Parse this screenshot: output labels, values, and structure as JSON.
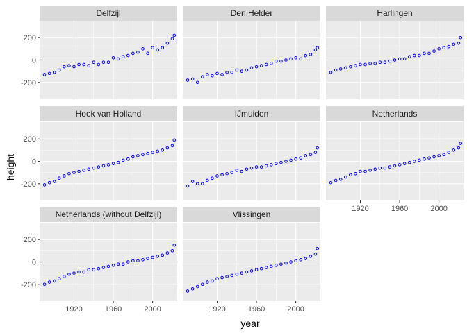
{
  "chart_data": {
    "type": "scatter",
    "facet_layout": {
      "ncol": 3,
      "nrow": 3
    },
    "xlabel": "year",
    "ylabel": "height",
    "xlim": [
      1885,
      2025
    ],
    "ylim": [
      -350,
      350
    ],
    "x_ticks": [
      1920,
      1960,
      2000
    ],
    "y_ticks": [
      -200,
      0,
      200
    ],
    "grid": true,
    "point_color": "#0000ff",
    "background_color": "#ebebeb",
    "strip_color": "#d9d9d9",
    "panels": [
      {
        "name": "Delfzijl",
        "x": [
          1890,
          1895,
          1900,
          1905,
          1910,
          1915,
          1920,
          1925,
          1930,
          1935,
          1940,
          1945,
          1950,
          1955,
          1960,
          1965,
          1970,
          1975,
          1980,
          1985,
          1990,
          1995,
          2000,
          2005,
          2010,
          2015,
          2020,
          2022
        ],
        "y": [
          -130,
          -120,
          -110,
          -90,
          -60,
          -50,
          -60,
          -40,
          -40,
          -50,
          -20,
          -40,
          -20,
          -20,
          20,
          10,
          30,
          40,
          60,
          70,
          100,
          60,
          110,
          90,
          110,
          150,
          190,
          220
        ]
      },
      {
        "name": "Den Helder",
        "x": [
          1890,
          1895,
          1900,
          1905,
          1910,
          1915,
          1920,
          1925,
          1930,
          1935,
          1940,
          1945,
          1950,
          1955,
          1960,
          1965,
          1970,
          1975,
          1980,
          1985,
          1990,
          1995,
          2000,
          2005,
          2010,
          2015,
          2020,
          2022
        ],
        "y": [
          -180,
          -170,
          -200,
          -150,
          -130,
          -140,
          -120,
          -130,
          -110,
          -110,
          -90,
          -100,
          -90,
          -70,
          -60,
          -50,
          -40,
          -30,
          -10,
          -10,
          0,
          10,
          20,
          10,
          40,
          50,
          90,
          110
        ]
      },
      {
        "name": "Harlingen",
        "x": [
          1890,
          1895,
          1900,
          1905,
          1910,
          1915,
          1920,
          1925,
          1930,
          1935,
          1940,
          1945,
          1950,
          1955,
          1960,
          1965,
          1970,
          1975,
          1980,
          1985,
          1990,
          1995,
          2000,
          2005,
          2010,
          2015,
          2020,
          2022
        ],
        "y": [
          -110,
          -90,
          -80,
          -70,
          -60,
          -50,
          -40,
          -40,
          -30,
          -30,
          -20,
          -20,
          -10,
          0,
          10,
          10,
          30,
          40,
          40,
          60,
          60,
          80,
          100,
          110,
          120,
          140,
          150,
          200
        ]
      },
      {
        "name": "Hoek van Holland",
        "x": [
          1890,
          1895,
          1900,
          1905,
          1910,
          1915,
          1920,
          1925,
          1930,
          1935,
          1940,
          1945,
          1950,
          1955,
          1960,
          1965,
          1970,
          1975,
          1980,
          1985,
          1990,
          1995,
          2000,
          2005,
          2010,
          2015,
          2020,
          2022
        ],
        "y": [
          -210,
          -190,
          -180,
          -150,
          -130,
          -110,
          -100,
          -90,
          -80,
          -70,
          -60,
          -50,
          -40,
          -30,
          -20,
          -10,
          10,
          20,
          40,
          50,
          60,
          70,
          80,
          90,
          100,
          120,
          140,
          190
        ]
      },
      {
        "name": "IJmuiden",
        "x": [
          1890,
          1895,
          1900,
          1905,
          1910,
          1915,
          1920,
          1925,
          1930,
          1935,
          1940,
          1945,
          1950,
          1955,
          1960,
          1965,
          1970,
          1975,
          1980,
          1985,
          1990,
          1995,
          2000,
          2005,
          2010,
          2015,
          2020,
          2022
        ],
        "y": [
          -220,
          -180,
          -200,
          -200,
          -170,
          -150,
          -130,
          -120,
          -110,
          -100,
          -80,
          -90,
          -70,
          -60,
          -50,
          -50,
          -40,
          -30,
          -20,
          -10,
          0,
          10,
          20,
          30,
          50,
          60,
          80,
          120
        ]
      },
      {
        "name": "Netherlands",
        "x": [
          1890,
          1895,
          1900,
          1905,
          1910,
          1915,
          1920,
          1925,
          1930,
          1935,
          1940,
          1945,
          1950,
          1955,
          1960,
          1965,
          1970,
          1975,
          1980,
          1985,
          1990,
          1995,
          2000,
          2005,
          2010,
          2015,
          2020,
          2022
        ],
        "y": [
          -190,
          -170,
          -160,
          -140,
          -120,
          -110,
          -90,
          -90,
          -80,
          -70,
          -60,
          -60,
          -50,
          -40,
          -30,
          -20,
          -10,
          0,
          10,
          20,
          30,
          40,
          50,
          60,
          80,
          100,
          120,
          160
        ]
      },
      {
        "name": "Netherlands (without Delfzijl)",
        "x": [
          1890,
          1895,
          1900,
          1905,
          1910,
          1915,
          1920,
          1925,
          1930,
          1935,
          1940,
          1945,
          1950,
          1955,
          1960,
          1965,
          1970,
          1975,
          1980,
          1985,
          1990,
          1995,
          2000,
          2005,
          2010,
          2015,
          2020,
          2022
        ],
        "y": [
          -200,
          -180,
          -170,
          -150,
          -130,
          -110,
          -100,
          -90,
          -90,
          -70,
          -70,
          -60,
          -50,
          -40,
          -30,
          -20,
          -20,
          0,
          10,
          10,
          20,
          30,
          40,
          50,
          60,
          80,
          100,
          150
        ]
      },
      {
        "name": "Vlissingen",
        "x": [
          1890,
          1895,
          1900,
          1905,
          1910,
          1915,
          1920,
          1925,
          1930,
          1935,
          1940,
          1945,
          1950,
          1955,
          1960,
          1965,
          1970,
          1975,
          1980,
          1985,
          1990,
          1995,
          2000,
          2005,
          2010,
          2015,
          2020,
          2022
        ],
        "y": [
          -260,
          -240,
          -220,
          -200,
          -180,
          -170,
          -150,
          -140,
          -130,
          -120,
          -110,
          -100,
          -90,
          -80,
          -70,
          -60,
          -50,
          -40,
          -30,
          -20,
          -10,
          0,
          10,
          20,
          30,
          50,
          70,
          120
        ]
      }
    ]
  }
}
